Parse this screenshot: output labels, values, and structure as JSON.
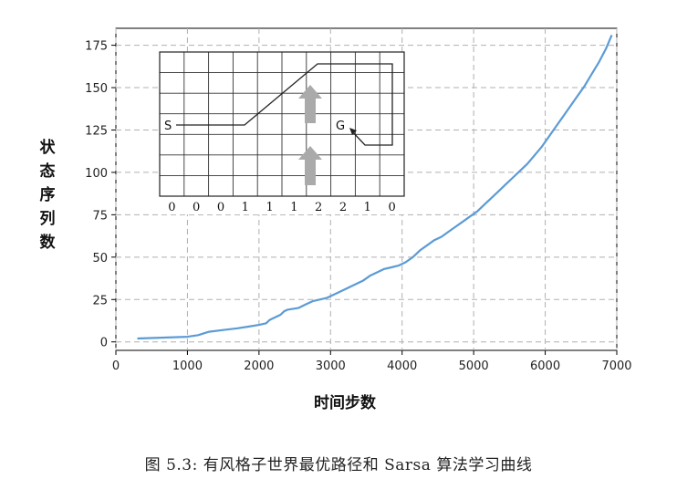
{
  "chart_data": {
    "type": "line",
    "xlabel": "时间步数",
    "ylabel": "状态序列数",
    "xlim": [
      0,
      7000
    ],
    "ylim": [
      -5,
      185
    ],
    "xticks": [
      0,
      1000,
      2000,
      3000,
      4000,
      5000,
      6000,
      7000
    ],
    "yticks": [
      0,
      25,
      50,
      75,
      100,
      125,
      150,
      175
    ],
    "grid": true,
    "line_color": "#5b9bd5",
    "x": [
      300,
      1000,
      1150,
      1300,
      1500,
      1700,
      1850,
      2000,
      2100,
      2150,
      2200,
      2300,
      2350,
      2400,
      2550,
      2650,
      2750,
      2850,
      2950,
      3050,
      3150,
      3250,
      3350,
      3450,
      3550,
      3650,
      3750,
      3850,
      3950,
      4050,
      4150,
      4250,
      4350,
      4450,
      4550,
      4650,
      4750,
      4850,
      4950,
      5050,
      5150,
      5250,
      5350,
      5450,
      5550,
      5650,
      5750,
      5850,
      5950,
      6050,
      6150,
      6250,
      6350,
      6450,
      6550,
      6650,
      6750,
      6850,
      6930
    ],
    "y": [
      2,
      3,
      4,
      6,
      7,
      8,
      9,
      10,
      11,
      13,
      14,
      16,
      18,
      19,
      20,
      22,
      24,
      25,
      26,
      28,
      30,
      32,
      34,
      36,
      39,
      41,
      43,
      44,
      45,
      47,
      50,
      54,
      57,
      60,
      62,
      65,
      68,
      71,
      74,
      77,
      81,
      85,
      89,
      93,
      97,
      101,
      105,
      110,
      115,
      121,
      127,
      133,
      139,
      145,
      151,
      158,
      165,
      173,
      181
    ],
    "inset": {
      "start_label": "S",
      "goal_label": "G",
      "wind": [
        "0",
        "0",
        "0",
        "1",
        "1",
        "1",
        "2",
        "2",
        "1",
        "0"
      ],
      "rows": 7,
      "cols": 10
    }
  },
  "caption": "图 5.3: 有风格子世界最优路径和 Sarsa 算法学习曲线"
}
